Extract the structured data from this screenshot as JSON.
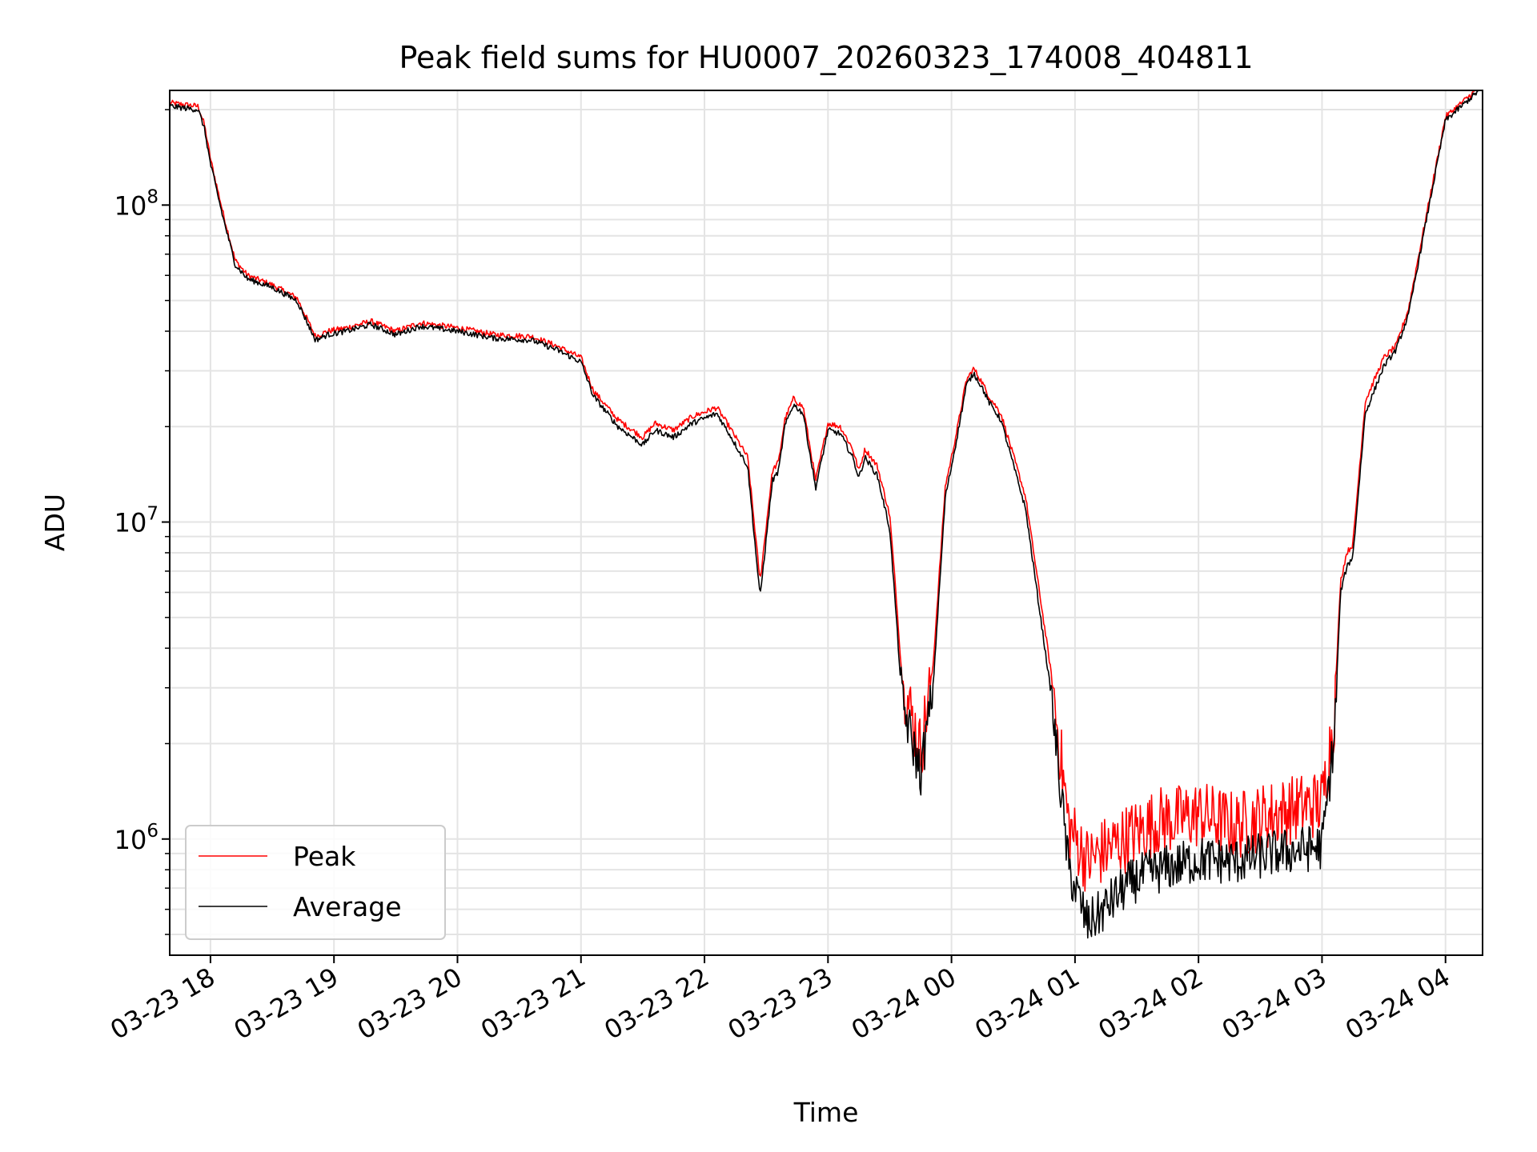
{
  "chart_data": {
    "type": "line",
    "title": "Peak field sums for HU0007_20260323_174008_404811",
    "xlabel": "Time",
    "ylabel": "ADU",
    "yscale": "log",
    "ylim": [
      430000,
      230000000
    ],
    "x_unit": "hours since 2026-03-23 18:00",
    "xlim": [
      -0.33,
      10.3
    ],
    "x_ticks": [
      {
        "value": 0,
        "label": "03-23 18"
      },
      {
        "value": 1,
        "label": "03-23 19"
      },
      {
        "value": 2,
        "label": "03-23 20"
      },
      {
        "value": 3,
        "label": "03-23 21"
      },
      {
        "value": 4,
        "label": "03-23 22"
      },
      {
        "value": 5,
        "label": "03-23 23"
      },
      {
        "value": 6,
        "label": "03-24 00"
      },
      {
        "value": 7,
        "label": "03-24 01"
      },
      {
        "value": 8,
        "label": "03-24 02"
      },
      {
        "value": 9,
        "label": "03-24 03"
      },
      {
        "value": 10,
        "label": "03-24 04"
      }
    ],
    "y_ticks": [
      {
        "value": 1000000,
        "base": "10",
        "exp": "6"
      },
      {
        "value": 10000000,
        "base": "10",
        "exp": "7"
      },
      {
        "value": 100000000,
        "base": "10",
        "exp": "8"
      }
    ],
    "grid": true,
    "legend_position": "lower-left",
    "series": [
      {
        "name": "Peak",
        "color": "#ff0000",
        "noise_below_3e6": 0.22
      },
      {
        "name": "Average",
        "color": "#000000",
        "noise_below_3e6": 0.15
      }
    ],
    "x": [
      -0.33,
      -0.1,
      -0.05,
      0.0,
      0.1,
      0.2,
      0.3,
      0.5,
      0.7,
      0.85,
      0.95,
      1.1,
      1.3,
      1.5,
      1.7,
      1.8,
      2.0,
      2.3,
      2.6,
      2.8,
      3.0,
      3.1,
      3.3,
      3.5,
      3.6,
      3.75,
      3.9,
      4.1,
      4.2,
      4.35,
      4.45,
      4.55,
      4.6,
      4.65,
      4.72,
      4.8,
      4.9,
      5.0,
      5.1,
      5.2,
      5.25,
      5.3,
      5.4,
      5.5,
      5.55,
      5.6,
      5.75,
      5.85,
      5.95,
      6.0,
      6.05,
      6.12,
      6.18,
      6.25,
      6.3,
      6.4,
      6.6,
      6.8,
      6.95,
      7.1,
      7.2,
      7.3,
      7.4,
      7.5,
      7.6,
      7.7,
      7.8,
      8.0,
      8.3,
      8.6,
      8.8,
      9.0,
      9.1,
      9.15,
      9.2,
      9.25,
      9.35,
      9.5,
      9.6,
      9.7,
      9.85,
      10.0,
      10.3
    ],
    "peak_values": [
      210000000,
      205000000,
      180000000,
      140000000,
      95000000,
      67000000,
      60000000,
      56000000,
      51000000,
      38500000,
      40000000,
      41000000,
      43000000,
      40000000,
      42500000,
      42000000,
      41000000,
      39000000,
      38500000,
      36000000,
      33000000,
      26000000,
      21000000,
      18500000,
      20500000,
      19500000,
      21500000,
      23000000,
      20000000,
      16000000,
      6500000,
      14500000,
      15500000,
      21000000,
      24500000,
      23000000,
      13500000,
      20500000,
      20000000,
      17000000,
      14500000,
      17000000,
      15000000,
      10500000,
      6000000,
      3200000,
      1900000,
      3500000,
      13000000,
      16000000,
      20000000,
      28000000,
      30500000,
      27500000,
      25000000,
      22000000,
      12000000,
      3500000,
      1100000,
      850000,
      900000,
      950000,
      1000000,
      1050000,
      1100000,
      1150000,
      1150000,
      1200000,
      1100000,
      1200000,
      1250000,
      1300000,
      2500000,
      6500000,
      8000000,
      8500000,
      24000000,
      33000000,
      36000000,
      47000000,
      95000000,
      190000000,
      240000000
    ],
    "average_values": [
      205000000,
      200000000,
      175000000,
      135000000,
      92000000,
      65000000,
      58500000,
      55000000,
      50000000,
      37500000,
      39000000,
      40000000,
      42000000,
      39000000,
      41500000,
      41000000,
      40000000,
      38000000,
      37500000,
      35000000,
      32000000,
      25000000,
      20000000,
      17500000,
      19500000,
      18500000,
      20500000,
      22000000,
      19000000,
      15000000,
      5800000,
      13500000,
      14500000,
      20000000,
      23500000,
      22000000,
      12800000,
      19500000,
      19000000,
      16000000,
      13800000,
      16000000,
      14000000,
      9500000,
      5200000,
      2700000,
      1600000,
      3000000,
      12000000,
      15000000,
      19000000,
      27000000,
      29500000,
      26500000,
      24000000,
      21000000,
      11000000,
      3000000,
      800000,
      540000,
      580000,
      640000,
      700000,
      750000,
      780000,
      800000,
      820000,
      860000,
      850000,
      900000,
      920000,
      950000,
      2100000,
      6000000,
      7200000,
      7800000,
      22000000,
      31000000,
      35000000,
      45000000,
      92000000,
      185000000,
      235000000
    ]
  }
}
